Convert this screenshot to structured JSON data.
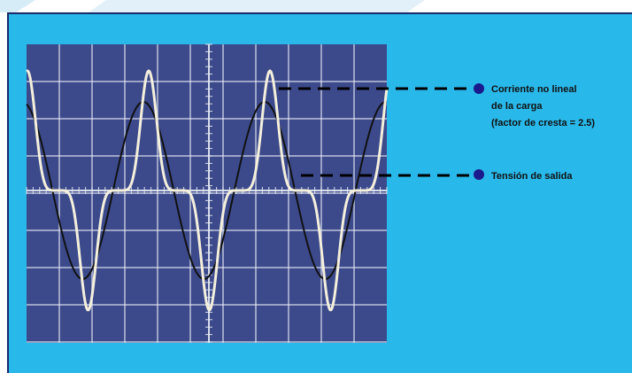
{
  "annotations": [
    {
      "lines": [
        "Corriente no lineal",
        "de la carga",
        "(factor de cresta = 2.5)"
      ]
    },
    {
      "lines": [
        "Tensión de salida"
      ]
    }
  ]
}
